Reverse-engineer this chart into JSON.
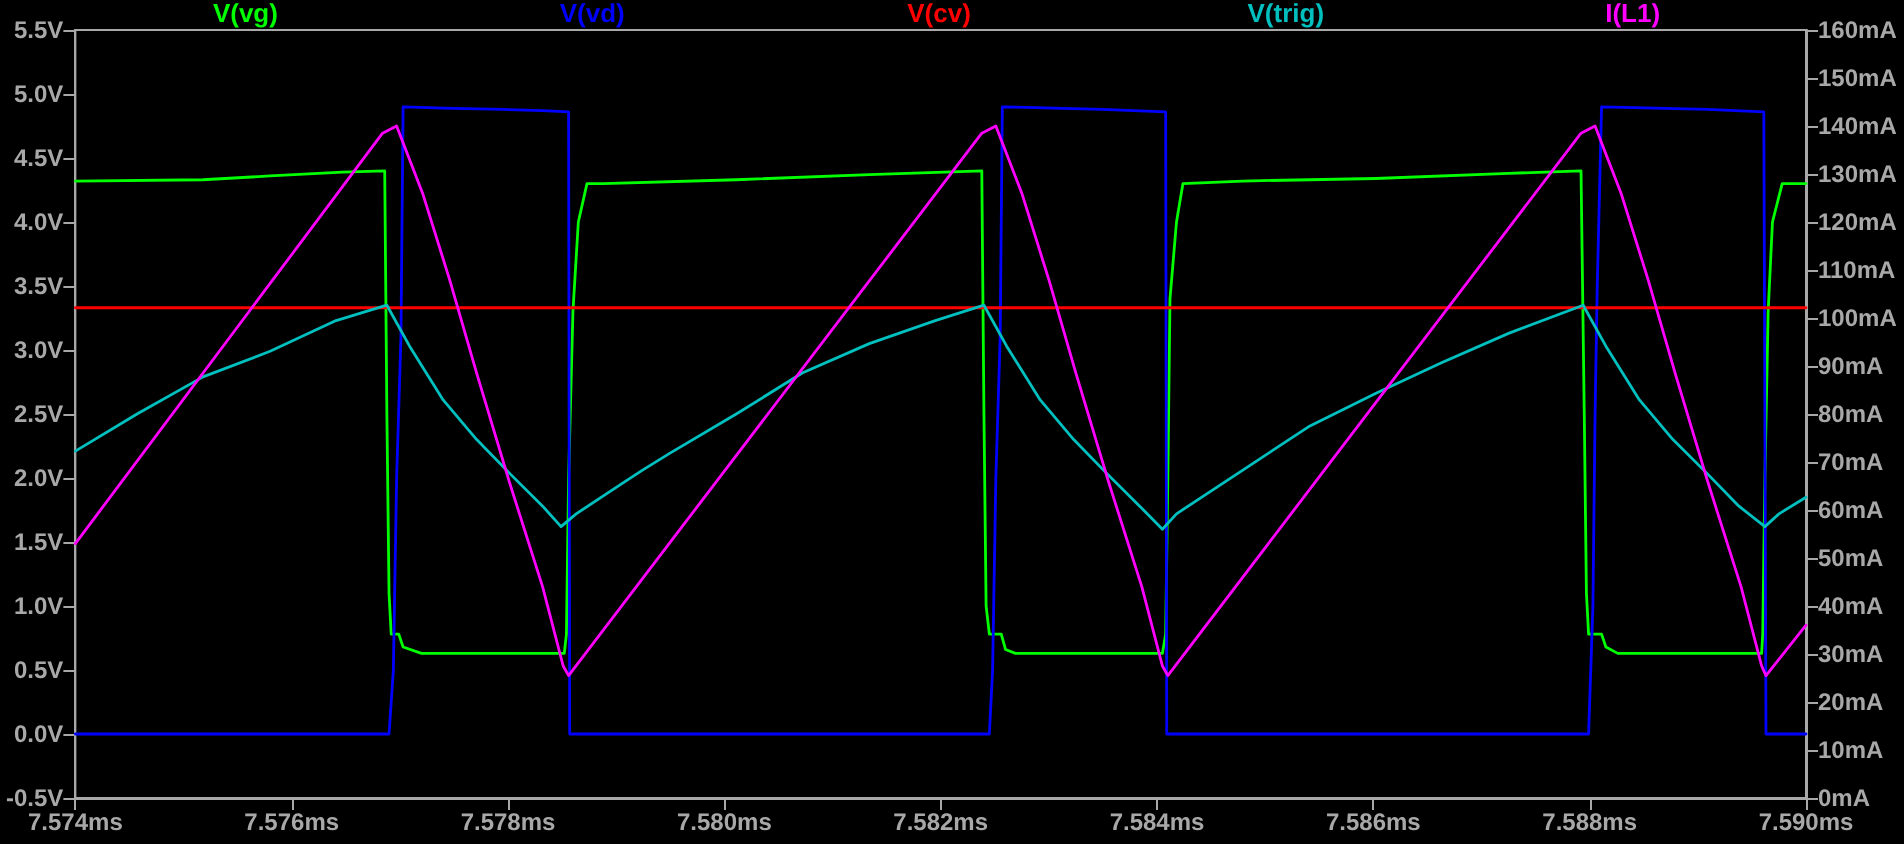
{
  "chart_data": {
    "type": "line",
    "legend": "top",
    "marker": "none",
    "xlim": [
      7.574,
      7.59
    ],
    "xticks": [
      {
        "value": 7.574,
        "label": "7.574ms"
      },
      {
        "value": 7.576,
        "label": "7.576ms"
      },
      {
        "value": 7.578,
        "label": "7.578ms"
      },
      {
        "value": 7.58,
        "label": "7.580ms"
      },
      {
        "value": 7.582,
        "label": "7.582ms"
      },
      {
        "value": 7.584,
        "label": "7.584ms"
      },
      {
        "value": 7.586,
        "label": "7.586ms"
      },
      {
        "value": 7.588,
        "label": "7.588ms"
      },
      {
        "value": 7.59,
        "label": "7.590ms"
      }
    ],
    "ylim": [
      -0.5,
      5.5
    ],
    "yticks": [
      {
        "value": -0.5,
        "label": "-0.5V"
      },
      {
        "value": 0,
        "label": "0.0V"
      },
      {
        "value": 0.5,
        "label": "0.5V"
      },
      {
        "value": 1,
        "label": "1.0V"
      },
      {
        "value": 1.5,
        "label": "1.5V"
      },
      {
        "value": 2,
        "label": "2.0V"
      },
      {
        "value": 2.5,
        "label": "2.5V"
      },
      {
        "value": 3,
        "label": "3.0V"
      },
      {
        "value": 3.5,
        "label": "3.5V"
      },
      {
        "value": 4,
        "label": "4.0V"
      },
      {
        "value": 4.5,
        "label": "4.5V"
      },
      {
        "value": 5,
        "label": "5.0V"
      },
      {
        "value": 5.5,
        "label": "5.5V"
      }
    ],
    "y2lim": [
      0,
      160
    ],
    "y2ticks": [
      {
        "value": 0,
        "label": "0mA"
      },
      {
        "value": 10,
        "label": "10mA"
      },
      {
        "value": 20,
        "label": "20mA"
      },
      {
        "value": 30,
        "label": "30mA"
      },
      {
        "value": 40,
        "label": "40mA"
      },
      {
        "value": 50,
        "label": "50mA"
      },
      {
        "value": 60,
        "label": "60mA"
      },
      {
        "value": 70,
        "label": "70mA"
      },
      {
        "value": 80,
        "label": "80mA"
      },
      {
        "value": 90,
        "label": "90mA"
      },
      {
        "value": 100,
        "label": "100mA"
      },
      {
        "value": 110,
        "label": "110mA"
      },
      {
        "value": 120,
        "label": "120mA"
      },
      {
        "value": 130,
        "label": "130mA"
      },
      {
        "value": 140,
        "label": "140mA"
      },
      {
        "value": 150,
        "label": "150mA"
      },
      {
        "value": 160,
        "label": "160mA"
      }
    ],
    "series": [
      {
        "name": "V(vg)",
        "color": "#00ff00",
        "x": [
          7.574,
          7.57518,
          7.5758,
          7.57647,
          7.57686,
          7.57688,
          7.5769,
          7.57692,
          7.57699,
          7.57703,
          7.5772,
          7.57852,
          7.57854,
          7.57856,
          7.5786,
          7.57865,
          7.57873,
          7.57888,
          7.58011,
          7.58134,
          7.58238,
          7.5824,
          7.58242,
          7.58245,
          7.58256,
          7.5826,
          7.58269,
          7.58405,
          7.58408,
          7.5841,
          7.58412,
          7.58418,
          7.58424,
          7.58479,
          7.58602,
          7.58725,
          7.58792,
          7.58795,
          7.58797,
          7.58799,
          7.58811,
          7.58815,
          7.58826,
          7.58959,
          7.5896,
          7.58962,
          7.58965,
          7.58969,
          7.58978,
          7.59
        ],
        "values": [
          4.32,
          4.33,
          4.36,
          4.39,
          4.4,
          2.5,
          1.1,
          0.78,
          0.78,
          0.68,
          0.63,
          0.63,
          0.78,
          2.0,
          3.3,
          4.0,
          4.3,
          4.3,
          4.33,
          4.37,
          4.4,
          2.5,
          1.0,
          0.78,
          0.78,
          0.66,
          0.63,
          0.63,
          0.78,
          2.0,
          3.4,
          4.0,
          4.3,
          4.32,
          4.34,
          4.38,
          4.4,
          2.5,
          1.1,
          0.78,
          0.78,
          0.68,
          0.63,
          0.63,
          0.78,
          2.0,
          3.3,
          4.0,
          4.3,
          4.3
        ]
      },
      {
        "name": "V(vd)",
        "color": "#0000ff",
        "x": [
          7.574,
          7.5769,
          7.57694,
          7.57697,
          7.57701,
          7.57703,
          7.5774,
          7.57795,
          7.57832,
          7.57856,
          7.57857,
          7.58245,
          7.58248,
          7.58251,
          7.58255,
          7.58257,
          7.58349,
          7.58408,
          7.58409,
          7.58799,
          7.58803,
          7.58805,
          7.58807,
          7.58811,
          7.58909,
          7.58961,
          7.58963,
          7.59
        ],
        "values": [
          0,
          0,
          0.5,
          2.0,
          3.1,
          4.9,
          4.89,
          4.88,
          4.87,
          4.86,
          0,
          0,
          0.5,
          2.0,
          3.1,
          4.9,
          4.88,
          4.86,
          0,
          0,
          1.0,
          2.5,
          3.5,
          4.9,
          4.88,
          4.86,
          0,
          0
        ]
      },
      {
        "name": "V(cv)",
        "color": "#ff0000",
        "x": [
          7.574,
          7.59
        ],
        "values": [
          3.33,
          3.33
        ]
      },
      {
        "name": "V(trig)",
        "color": "#00bfbf",
        "x": [
          7.574,
          7.57457,
          7.57518,
          7.5758,
          7.57641,
          7.57688,
          7.57709,
          7.5774,
          7.57771,
          7.57801,
          7.57832,
          7.57849,
          7.57863,
          7.57906,
          7.57924,
          7.57949,
          7.58011,
          7.58072,
          7.58134,
          7.58195,
          7.5824,
          7.58261,
          7.58292,
          7.58323,
          7.58353,
          7.58384,
          7.58405,
          7.58418,
          7.58479,
          7.5854,
          7.58602,
          7.58663,
          7.58725,
          7.58794,
          7.58815,
          7.58846,
          7.58877,
          7.58908,
          7.58938,
          7.58962,
          7.58975,
          7.59
        ],
        "values": [
          2.21,
          2.5,
          2.79,
          2.99,
          3.23,
          3.35,
          3.03,
          2.61,
          2.3,
          2.04,
          1.78,
          1.62,
          1.72,
          1.96,
          2.06,
          2.19,
          2.5,
          2.82,
          3.05,
          3.23,
          3.35,
          3.03,
          2.61,
          2.3,
          2.04,
          1.78,
          1.6,
          1.72,
          2.06,
          2.4,
          2.66,
          2.9,
          3.13,
          3.35,
          3.03,
          2.61,
          2.3,
          2.04,
          1.78,
          1.62,
          1.72,
          1.85
        ]
      },
      {
        "name": "I(L1)",
        "color": "#ff00ff",
        "axis": "y2",
        "x": [
          7.574,
          7.57684,
          7.57697,
          7.57721,
          7.57746,
          7.57771,
          7.57801,
          7.57832,
          7.57851,
          7.57856,
          7.58238,
          7.58251,
          7.58275,
          7.583,
          7.58325,
          7.58355,
          7.58386,
          7.58405,
          7.5841,
          7.58792,
          7.58805,
          7.58829,
          7.58854,
          7.58879,
          7.58909,
          7.5894,
          7.58959,
          7.58963,
          7.59
        ],
        "values": [
          53,
          138.5,
          140,
          126,
          108,
          88.5,
          66,
          44,
          27.5,
          25.5,
          138.5,
          140,
          126,
          108,
          88.5,
          66,
          44,
          27.5,
          25.5,
          138.5,
          140,
          126,
          108,
          88.5,
          66,
          44,
          27.5,
          25.5,
          36
        ]
      }
    ]
  }
}
